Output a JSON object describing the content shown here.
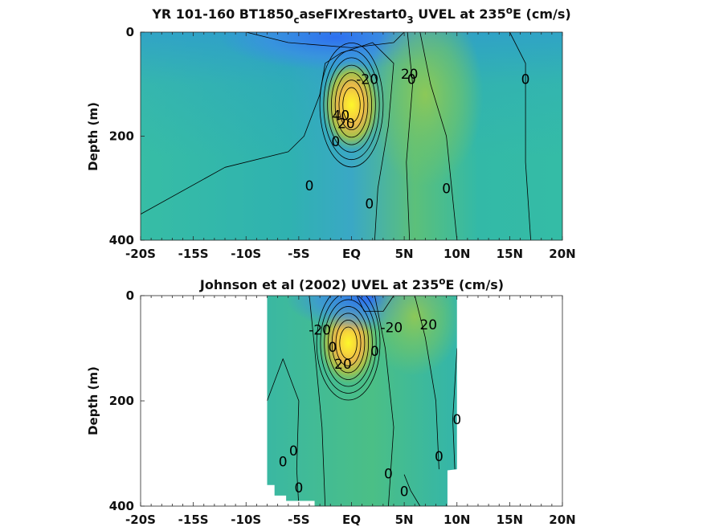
{
  "chart_data": [
    {
      "type": "heatmap",
      "title_main": "YR 101-160 BT1850",
      "title_sub": "c",
      "title_mid": "aseFIXrestart0",
      "title_sub2": "3",
      "title_rest": " UVEL at 235",
      "title_deg": "o",
      "title_tail": "E (cm/s)",
      "ylabel": "Depth (m)",
      "xlim": [
        -20,
        20
      ],
      "ylim": [
        0,
        400
      ],
      "x_ticks": [
        {
          "v": -20,
          "label": "-20S"
        },
        {
          "v": -15,
          "label": "-15S"
        },
        {
          "v": -10,
          "label": "-10S"
        },
        {
          "v": -5,
          "label": "-5S"
        },
        {
          "v": 0,
          "label": "EQ"
        },
        {
          "v": 5,
          "label": "5N"
        },
        {
          "v": 10,
          "label": "10N"
        },
        {
          "v": 15,
          "label": "15N"
        },
        {
          "v": 20,
          "label": "20N"
        }
      ],
      "y_ticks": [
        {
          "v": 0,
          "label": "0"
        },
        {
          "v": 200,
          "label": "200"
        },
        {
          "v": 400,
          "label": "400"
        }
      ],
      "data_extent": {
        "lat": [
          -20,
          20
        ],
        "depth": [
          0,
          400
        ]
      },
      "cores": [
        {
          "name": "undercurrent",
          "lat": 0.0,
          "depth": 140,
          "value": 100,
          "sx": 1.3,
          "sy": 55
        },
        {
          "name": "westward-surface",
          "lat": -1.5,
          "depth": 10,
          "value": -30,
          "sx": 5,
          "sy": 40
        },
        {
          "name": "eastward-ncc",
          "lat": 7,
          "depth": 120,
          "value": 30,
          "sx": 2.5,
          "sy": 110
        }
      ],
      "contour_labels": [
        {
          "text": "-20",
          "lat": 1.5,
          "depth": 90
        },
        {
          "text": "20",
          "lat": 5.5,
          "depth": 80
        },
        {
          "text": "0",
          "lat": 5.7,
          "depth": 90
        },
        {
          "text": "0",
          "lat": 16.5,
          "depth": 90
        },
        {
          "text": "40",
          "lat": -1.0,
          "depth": 160
        },
        {
          "text": "20",
          "lat": -0.5,
          "depth": 175
        },
        {
          "text": "0",
          "lat": -1.5,
          "depth": 210
        },
        {
          "text": "0",
          "lat": -4.0,
          "depth": 295
        },
        {
          "text": "0",
          "lat": 1.7,
          "depth": 330
        },
        {
          "text": "0",
          "lat": 9.0,
          "depth": 300
        }
      ]
    },
    {
      "type": "heatmap",
      "title": "Johnson et al (2002) UVEL at 235",
      "title_deg": "o",
      "title_tail": "E (cm/s)",
      "ylabel": "Depth (m)",
      "xlim": [
        -20,
        20
      ],
      "ylim": [
        0,
        400
      ],
      "x_ticks": [
        {
          "v": -20,
          "label": "-20S"
        },
        {
          "v": -15,
          "label": "-15S"
        },
        {
          "v": -10,
          "label": "-10S"
        },
        {
          "v": -5,
          "label": "-5S"
        },
        {
          "v": 0,
          "label": "EQ"
        },
        {
          "v": 5,
          "label": "5N"
        },
        {
          "v": 10,
          "label": "10N"
        },
        {
          "v": 15,
          "label": "15N"
        },
        {
          "v": 20,
          "label": "20N"
        }
      ],
      "y_ticks": [
        {
          "v": 0,
          "label": "0"
        },
        {
          "v": 200,
          "label": "200"
        },
        {
          "v": 400,
          "label": "400"
        }
      ],
      "data_extent": {
        "lat": [
          -8,
          10
        ],
        "depth": [
          0,
          400
        ]
      },
      "cores": [
        {
          "name": "undercurrent",
          "lat": -0.3,
          "depth": 90,
          "value": 100,
          "sx": 1.3,
          "sy": 50
        },
        {
          "name": "westward-surface",
          "lat": 1.5,
          "depth": 5,
          "value": -30,
          "sx": 3.5,
          "sy": 40
        },
        {
          "name": "eastward-ncc",
          "lat": 6,
          "depth": 40,
          "value": 25,
          "sx": 2,
          "sy": 70
        }
      ],
      "contour_labels": [
        {
          "text": "-20",
          "lat": -3.0,
          "depth": 65
        },
        {
          "text": "-20",
          "lat": 3.8,
          "depth": 60
        },
        {
          "text": "20",
          "lat": 7.3,
          "depth": 55
        },
        {
          "text": "0",
          "lat": 2.2,
          "depth": 105
        },
        {
          "text": "0",
          "lat": -1.8,
          "depth": 98
        },
        {
          "text": "20",
          "lat": -0.8,
          "depth": 130
        },
        {
          "text": "0",
          "lat": 10.0,
          "depth": 235
        },
        {
          "text": "0",
          "lat": -5.5,
          "depth": 295
        },
        {
          "text": "0",
          "lat": -6.5,
          "depth": 315
        },
        {
          "text": "0",
          "lat": 8.3,
          "depth": 305
        },
        {
          "text": "0",
          "lat": 3.5,
          "depth": 338
        },
        {
          "text": "0",
          "lat": -5.0,
          "depth": 365
        },
        {
          "text": "0",
          "lat": 5.0,
          "depth": 372
        }
      ]
    }
  ]
}
